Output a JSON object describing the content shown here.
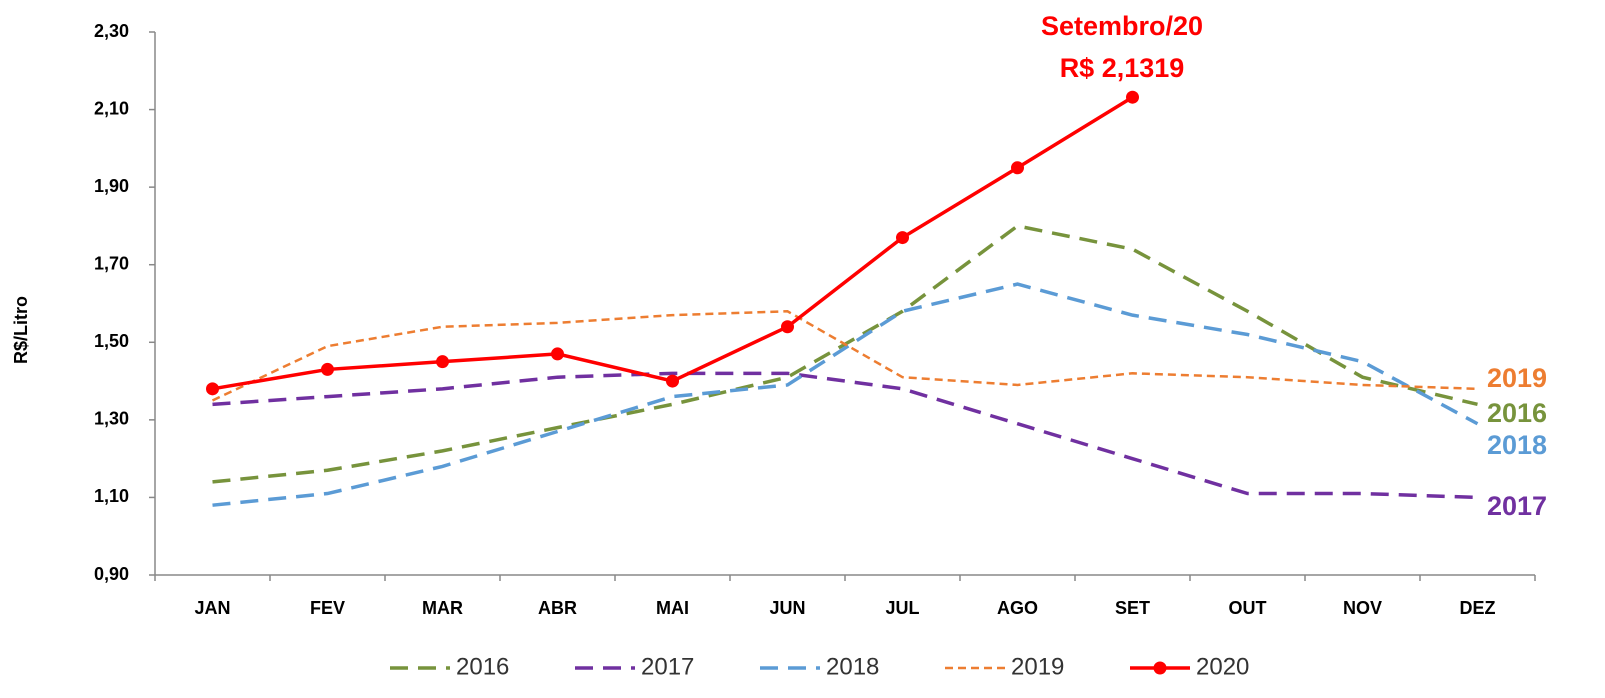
{
  "chart_data": {
    "type": "line",
    "y_label": "R$/Litro",
    "annotation": [
      "Setembro/20",
      "R$ 2,1319"
    ],
    "categories": [
      "JAN",
      "FEV",
      "MAR",
      "ABR",
      "MAI",
      "JUN",
      "JUL",
      "AGO",
      "SET",
      "OUT",
      "NOV",
      "DEZ"
    ],
    "series": [
      {
        "name": "2016",
        "color": "#77933c",
        "values": [
          1.14,
          1.17,
          1.22,
          1.28,
          1.34,
          1.41,
          1.58,
          1.8,
          1.74,
          1.58,
          1.41,
          1.34
        ]
      },
      {
        "name": "2017",
        "color": "#7030a0",
        "values": [
          1.34,
          1.36,
          1.38,
          1.41,
          1.42,
          1.42,
          1.38,
          1.29,
          1.2,
          1.11,
          1.11,
          1.1
        ]
      },
      {
        "name": "2018",
        "color": "#5b9bd5",
        "values": [
          1.08,
          1.11,
          1.18,
          1.27,
          1.36,
          1.39,
          1.58,
          1.65,
          1.57,
          1.52,
          1.45,
          1.29
        ]
      },
      {
        "name": "2019",
        "color": "#ed7d31",
        "values": [
          1.35,
          1.49,
          1.54,
          1.55,
          1.57,
          1.58,
          1.41,
          1.39,
          1.42,
          1.41,
          1.39,
          1.38
        ]
      },
      {
        "name": "2020",
        "color": "#ff0000",
        "values": [
          1.38,
          1.43,
          1.45,
          1.47,
          1.4,
          1.54,
          1.77,
          1.95,
          2.1319,
          null,
          null,
          null
        ]
      }
    ],
    "ylim": [
      0.9,
      2.3
    ],
    "yticks": [
      {
        "value": 0.9,
        "label": "0,90"
      },
      {
        "value": 1.1,
        "label": "1,10"
      },
      {
        "value": 1.3,
        "label": "1,30"
      },
      {
        "value": 1.5,
        "label": "1,50"
      },
      {
        "value": 1.7,
        "label": "1,70"
      },
      {
        "value": 1.9,
        "label": "1,90"
      },
      {
        "value": 2.1,
        "label": "2,10"
      },
      {
        "value": 2.3,
        "label": "2,30"
      }
    ],
    "legend": "bottom"
  }
}
